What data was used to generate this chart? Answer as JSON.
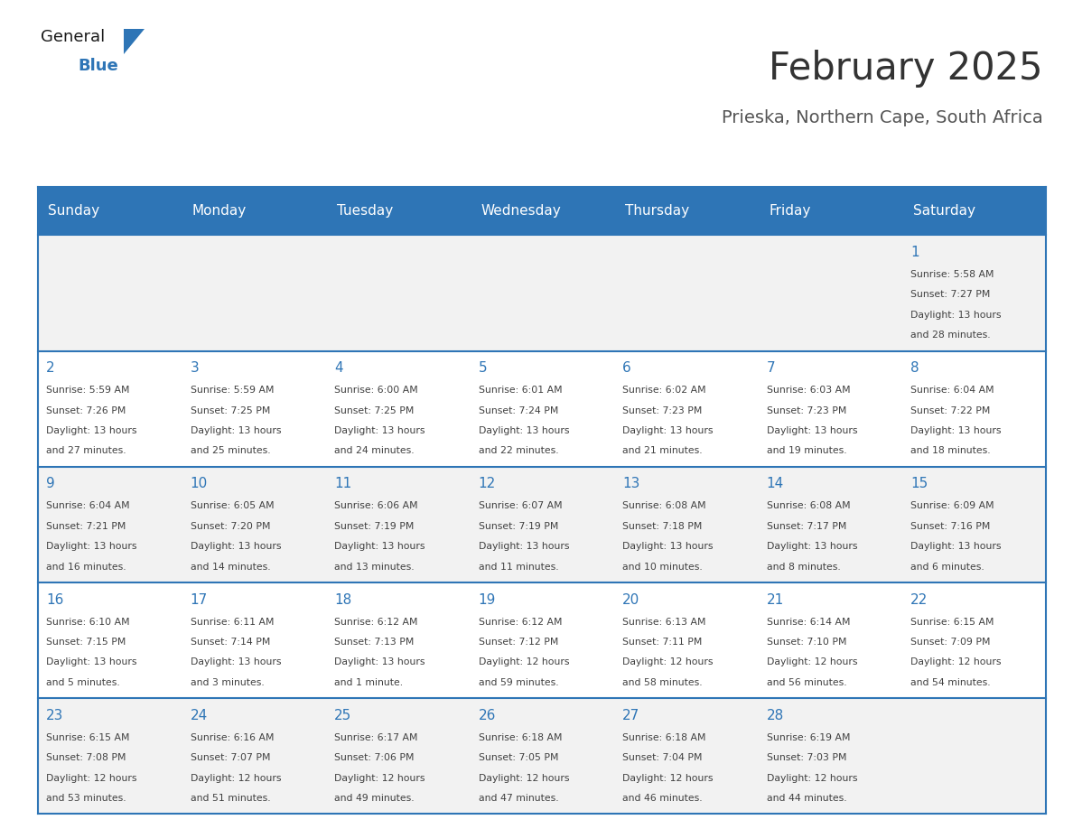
{
  "title": "February 2025",
  "subtitle": "Prieska, Northern Cape, South Africa",
  "header_bg": "#2E75B6",
  "header_text_color": "#FFFFFF",
  "cell_bg_light": "#F2F2F2",
  "cell_bg_white": "#FFFFFF",
  "day_number_color": "#2E75B6",
  "text_color": "#404040",
  "border_color": "#2E75B6",
  "days_of_week": [
    "Sunday",
    "Monday",
    "Tuesday",
    "Wednesday",
    "Thursday",
    "Friday",
    "Saturday"
  ],
  "title_color": "#333333",
  "subtitle_color": "#555555",
  "logo_text1_color": "#1a1a1a",
  "logo_text2_color": "#2E75B6",
  "calendar_data": [
    [
      null,
      null,
      null,
      null,
      null,
      null,
      {
        "day": 1,
        "sunrise": "5:58 AM",
        "sunset": "7:27 PM",
        "daylight": "13 hours and 28 minutes."
      }
    ],
    [
      {
        "day": 2,
        "sunrise": "5:59 AM",
        "sunset": "7:26 PM",
        "daylight": "13 hours and 27 minutes."
      },
      {
        "day": 3,
        "sunrise": "5:59 AM",
        "sunset": "7:25 PM",
        "daylight": "13 hours and 25 minutes."
      },
      {
        "day": 4,
        "sunrise": "6:00 AM",
        "sunset": "7:25 PM",
        "daylight": "13 hours and 24 minutes."
      },
      {
        "day": 5,
        "sunrise": "6:01 AM",
        "sunset": "7:24 PM",
        "daylight": "13 hours and 22 minutes."
      },
      {
        "day": 6,
        "sunrise": "6:02 AM",
        "sunset": "7:23 PM",
        "daylight": "13 hours and 21 minutes."
      },
      {
        "day": 7,
        "sunrise": "6:03 AM",
        "sunset": "7:23 PM",
        "daylight": "13 hours and 19 minutes."
      },
      {
        "day": 8,
        "sunrise": "6:04 AM",
        "sunset": "7:22 PM",
        "daylight": "13 hours and 18 minutes."
      }
    ],
    [
      {
        "day": 9,
        "sunrise": "6:04 AM",
        "sunset": "7:21 PM",
        "daylight": "13 hours and 16 minutes."
      },
      {
        "day": 10,
        "sunrise": "6:05 AM",
        "sunset": "7:20 PM",
        "daylight": "13 hours and 14 minutes."
      },
      {
        "day": 11,
        "sunrise": "6:06 AM",
        "sunset": "7:19 PM",
        "daylight": "13 hours and 13 minutes."
      },
      {
        "day": 12,
        "sunrise": "6:07 AM",
        "sunset": "7:19 PM",
        "daylight": "13 hours and 11 minutes."
      },
      {
        "day": 13,
        "sunrise": "6:08 AM",
        "sunset": "7:18 PM",
        "daylight": "13 hours and 10 minutes."
      },
      {
        "day": 14,
        "sunrise": "6:08 AM",
        "sunset": "7:17 PM",
        "daylight": "13 hours and 8 minutes."
      },
      {
        "day": 15,
        "sunrise": "6:09 AM",
        "sunset": "7:16 PM",
        "daylight": "13 hours and 6 minutes."
      }
    ],
    [
      {
        "day": 16,
        "sunrise": "6:10 AM",
        "sunset": "7:15 PM",
        "daylight": "13 hours and 5 minutes."
      },
      {
        "day": 17,
        "sunrise": "6:11 AM",
        "sunset": "7:14 PM",
        "daylight": "13 hours and 3 minutes."
      },
      {
        "day": 18,
        "sunrise": "6:12 AM",
        "sunset": "7:13 PM",
        "daylight": "13 hours and 1 minute."
      },
      {
        "day": 19,
        "sunrise": "6:12 AM",
        "sunset": "7:12 PM",
        "daylight": "12 hours and 59 minutes."
      },
      {
        "day": 20,
        "sunrise": "6:13 AM",
        "sunset": "7:11 PM",
        "daylight": "12 hours and 58 minutes."
      },
      {
        "day": 21,
        "sunrise": "6:14 AM",
        "sunset": "7:10 PM",
        "daylight": "12 hours and 56 minutes."
      },
      {
        "day": 22,
        "sunrise": "6:15 AM",
        "sunset": "7:09 PM",
        "daylight": "12 hours and 54 minutes."
      }
    ],
    [
      {
        "day": 23,
        "sunrise": "6:15 AM",
        "sunset": "7:08 PM",
        "daylight": "12 hours and 53 minutes."
      },
      {
        "day": 24,
        "sunrise": "6:16 AM",
        "sunset": "7:07 PM",
        "daylight": "12 hours and 51 minutes."
      },
      {
        "day": 25,
        "sunrise": "6:17 AM",
        "sunset": "7:06 PM",
        "daylight": "12 hours and 49 minutes."
      },
      {
        "day": 26,
        "sunrise": "6:18 AM",
        "sunset": "7:05 PM",
        "daylight": "12 hours and 47 minutes."
      },
      {
        "day": 27,
        "sunrise": "6:18 AM",
        "sunset": "7:04 PM",
        "daylight": "12 hours and 46 minutes."
      },
      {
        "day": 28,
        "sunrise": "6:19 AM",
        "sunset": "7:03 PM",
        "daylight": "12 hours and 44 minutes."
      },
      null
    ]
  ]
}
